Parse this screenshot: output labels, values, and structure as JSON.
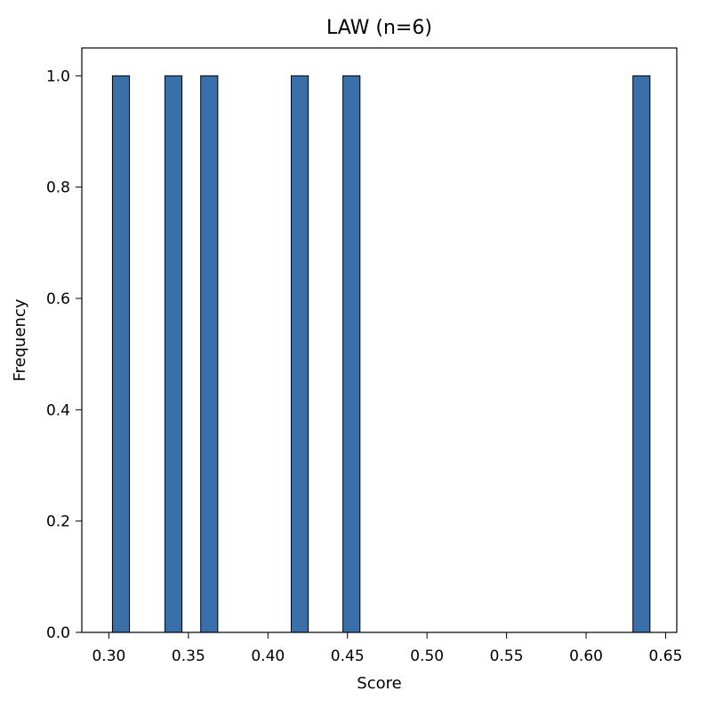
{
  "chart_data": {
    "type": "bar",
    "title": "LAW (n=6)",
    "xlabel": "Score",
    "ylabel": "Frequency",
    "xlim": [
      0.283,
      0.657
    ],
    "ylim": [
      0,
      1.05
    ],
    "bar_width": 0.0107,
    "bars": [
      {
        "x": 0.3076,
        "value": 1.0
      },
      {
        "x": 0.3406,
        "value": 1.0
      },
      {
        "x": 0.3631,
        "value": 1.0
      },
      {
        "x": 0.42,
        "value": 1.0
      },
      {
        "x": 0.4525,
        "value": 1.0
      },
      {
        "x": 0.6348,
        "value": 1.0
      }
    ],
    "xticks": [
      0.3,
      0.35,
      0.4,
      0.45,
      0.5,
      0.55,
      0.6,
      0.65
    ],
    "xtick_labels": [
      "0.30",
      "0.35",
      "0.40",
      "0.45",
      "0.50",
      "0.55",
      "0.60",
      "0.65"
    ],
    "yticks": [
      0.0,
      0.2,
      0.4,
      0.6,
      0.8,
      1.0
    ],
    "ytick_labels": [
      "0.0",
      "0.2",
      "0.4",
      "0.6",
      "0.8",
      "1.0"
    ],
    "grid": false,
    "legend": "none",
    "colors": {
      "bar_fill": "#3a70aa",
      "bar_edge": "#000000",
      "axis": "#000000",
      "background": "#ffffff"
    }
  }
}
